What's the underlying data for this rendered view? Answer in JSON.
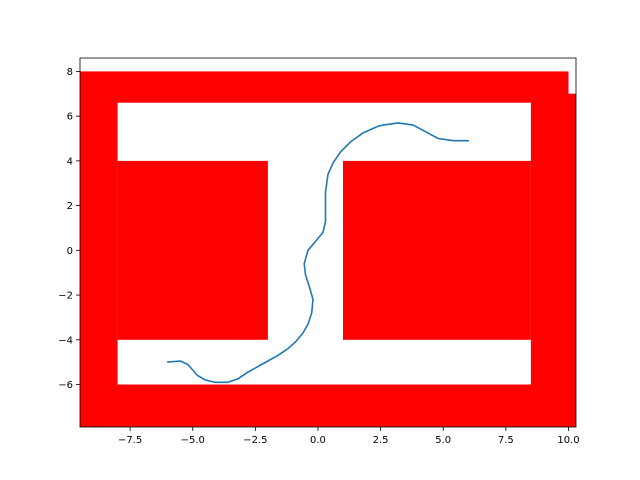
{
  "chart_data": {
    "type": "line",
    "title": "",
    "xlabel": "",
    "ylabel": "",
    "xlim": [
      -9.5,
      10.3
    ],
    "ylim": [
      -7.9,
      8.6
    ],
    "grid": false,
    "x_ticks": [
      -7.5,
      -5.0,
      -2.5,
      0.0,
      2.5,
      5.0,
      7.5,
      10.0
    ],
    "x_tick_labels": [
      "−7.5",
      "−5.0",
      "−2.5",
      "0.0",
      "2.5",
      "5.0",
      "7.5",
      "10.0"
    ],
    "y_ticks": [
      -6,
      -4,
      -2,
      0,
      2,
      4,
      6,
      8
    ],
    "y_tick_labels": [
      "−6",
      "−4",
      "−2",
      "0",
      "2",
      "4",
      "6",
      "8"
    ],
    "obstacle_color": "#ff0000",
    "line_color": "#1f77b4",
    "obstacles": [
      [
        -9.5,
        -7.9,
        1.5,
        14.7
      ],
      [
        -9.5,
        6.6,
        19.5,
        1.4
      ],
      [
        -9.5,
        -7.9,
        19.8,
        1.9
      ],
      [
        8.5,
        -7.9,
        1.8,
        14.9
      ],
      [
        -8.0,
        -4.0,
        6.0,
        8.0
      ],
      [
        1.0,
        -4.0,
        7.5,
        8.0
      ],
      [
        10.0,
        6.0,
        0.3,
        1.0
      ]
    ],
    "series": [
      {
        "x": [
          -6.0,
          -5.5,
          -5.2,
          -5.0,
          -4.8,
          -4.5,
          -4.1,
          -3.6,
          -3.2,
          -2.8,
          -2.4,
          -2.0,
          -1.6,
          -1.2,
          -0.9,
          -0.6,
          -0.4,
          -0.25,
          -0.2,
          -0.35,
          -0.5,
          -0.55,
          -0.4,
          -0.1,
          0.2,
          0.3,
          0.3,
          0.3,
          0.4,
          0.6,
          0.9,
          1.3,
          1.8,
          2.4,
          2.6,
          3.2,
          3.8,
          4.3,
          4.8,
          5.4,
          6.0
        ],
        "y": [
          -5.0,
          -4.95,
          -5.1,
          -5.35,
          -5.6,
          -5.8,
          -5.9,
          -5.9,
          -5.75,
          -5.45,
          -5.2,
          -4.95,
          -4.7,
          -4.4,
          -4.1,
          -3.7,
          -3.3,
          -2.8,
          -2.2,
          -1.6,
          -1.1,
          -0.6,
          0.0,
          0.4,
          0.8,
          1.3,
          2.0,
          2.6,
          3.4,
          3.9,
          4.4,
          4.85,
          5.25,
          5.55,
          5.6,
          5.7,
          5.6,
          5.3,
          5.0,
          4.9,
          4.9
        ]
      }
    ]
  }
}
